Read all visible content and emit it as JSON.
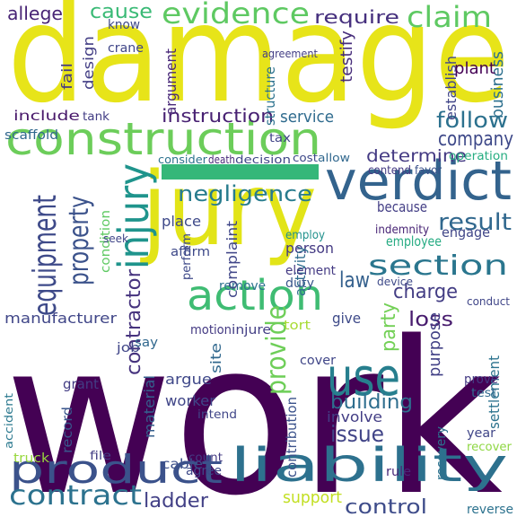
{
  "words": [
    "damage",
    "work",
    "jury",
    "construction",
    "verdict",
    "liability",
    "product",
    "action",
    "use",
    "injury",
    "equipment",
    "property",
    "evidence",
    "claim",
    "require",
    "cause",
    "allege",
    "section",
    "result",
    "company",
    "determine",
    "follow",
    "negligence",
    "provide",
    "contractor",
    "charge",
    "law",
    "loss",
    "issue",
    "building",
    "contract",
    "ladder",
    "control",
    "support",
    "instruction",
    "service",
    "include",
    "party",
    "purpose",
    "manufacturer",
    "give",
    "employee",
    "person",
    "worker",
    "argue",
    "material",
    "involve",
    "settlement",
    "business",
    "establish",
    "testify",
    "plant",
    "agreement",
    "decision",
    "death",
    "consider",
    "operation",
    "engage",
    "because",
    "activity",
    "place",
    "record",
    "grant",
    "cable",
    "truck",
    "recovery",
    "reverse",
    "recover",
    "motion",
    "injure",
    "tort",
    "cover",
    "site",
    "perform",
    "job",
    "say",
    "duty",
    "remove",
    "element",
    "employ",
    "contribution",
    "design",
    "fail",
    "argument",
    "crane",
    "know",
    "structure",
    "scaffold",
    "affirm",
    "complaint",
    "agree",
    "count",
    "rule",
    "tax",
    "cost",
    "allow",
    "accident",
    "intend",
    "prove",
    "year",
    "test",
    "file",
    "conduct",
    "contend",
    "favor",
    "tank",
    "device",
    "condition",
    "seek",
    "indemnity"
  ]
}
